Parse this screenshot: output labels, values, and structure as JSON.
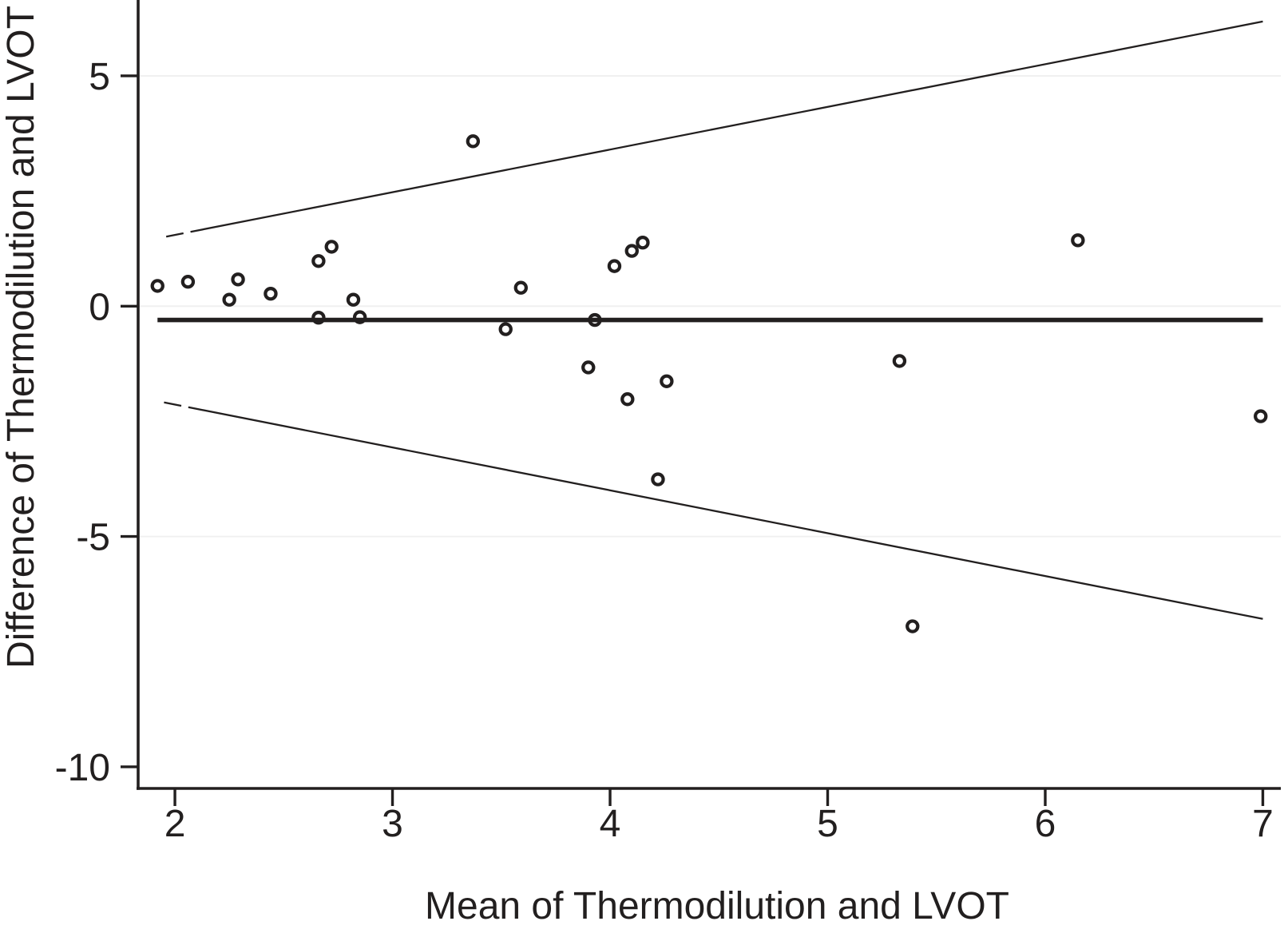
{
  "figure": {
    "background": "#ffffff",
    "ink_color": "#221f1f",
    "grid_color": "#f0f0f0"
  },
  "chart_data": {
    "type": "scatter",
    "title": "",
    "xlabel": "Mean of Thermodilution and LVOT",
    "ylabel": "Difference of Thermodilution and LVOT",
    "xlim": [
      1.831,
      7.068
    ],
    "ylim": [
      -10.47,
      6.647
    ],
    "x_ticks": [
      2,
      3,
      4,
      5,
      6,
      7
    ],
    "y_ticks": [
      5,
      0,
      -5,
      -10
    ],
    "grid": "horizontal",
    "gridline_values": [
      5,
      0,
      -5
    ],
    "legend": "none",
    "marker": "open-circle",
    "points": [
      [
        1.92,
        0.44
      ],
      [
        2.06,
        0.53
      ],
      [
        2.25,
        0.14
      ],
      [
        2.29,
        0.58
      ],
      [
        2.44,
        0.27
      ],
      [
        2.66,
        0.98
      ],
      [
        2.72,
        1.29
      ],
      [
        2.66,
        -0.25
      ],
      [
        2.82,
        0.14
      ],
      [
        2.85,
        -0.24
      ],
      [
        3.37,
        3.58
      ],
      [
        3.52,
        -0.5
      ],
      [
        3.59,
        0.4
      ],
      [
        3.9,
        -1.33
      ],
      [
        3.93,
        -0.3
      ],
      [
        4.02,
        0.87
      ],
      [
        4.1,
        1.2
      ],
      [
        4.15,
        1.38
      ],
      [
        4.08,
        -2.02
      ],
      [
        4.26,
        -1.63
      ],
      [
        4.22,
        -3.76
      ],
      [
        5.33,
        -1.19
      ],
      [
        5.39,
        -6.95
      ],
      [
        6.15,
        1.43
      ],
      [
        6.99,
        -2.39
      ]
    ],
    "mean_line": {
      "y": -0.3,
      "x_start": 1.92,
      "x_end": 7.0
    },
    "upper_limit_line": {
      "x_start": 1.96,
      "y_start": 1.51,
      "x_end": 7.0,
      "y_end": 6.18
    },
    "lower_limit_line": {
      "x_start": 1.95,
      "y_start": -2.09,
      "x_end": 7.0,
      "y_end": -6.79
    }
  }
}
